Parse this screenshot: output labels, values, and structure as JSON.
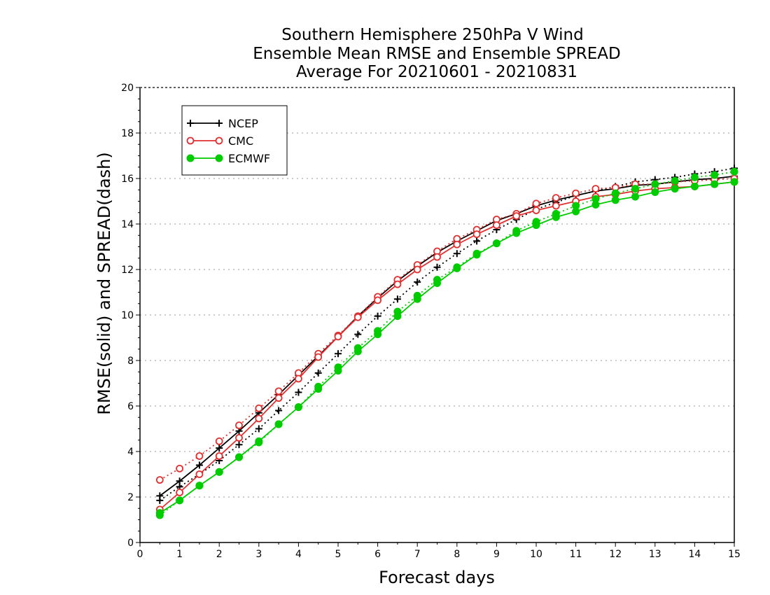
{
  "chart_data": {
    "type": "line",
    "title_lines": [
      "Southern Hemisphere 250hPa V Wind",
      "Ensemble Mean RMSE and Ensemble SPREAD",
      "Average For 20210601 - 20210831"
    ],
    "xlabel": "Forecast days",
    "ylabel": "RMSE(solid) and SPREAD(dash)",
    "xlim": [
      0,
      15
    ],
    "ylim": [
      0,
      20
    ],
    "x_ticks": [
      "0",
      "1",
      "2",
      "3",
      "4",
      "5",
      "6",
      "7",
      "8",
      "9",
      "10",
      "11",
      "12",
      "13",
      "14",
      "15"
    ],
    "y_ticks": [
      "0",
      "2",
      "4",
      "6",
      "8",
      "10",
      "12",
      "14",
      "16",
      "18",
      "20"
    ],
    "grid": "dotted horizontal",
    "legend_position": "top-left",
    "x": [
      0.5,
      1,
      1.5,
      2,
      2.5,
      3,
      3.5,
      4,
      4.5,
      5,
      5.5,
      6,
      6.5,
      7,
      7.5,
      8,
      8.5,
      9,
      9.5,
      10,
      10.5,
      11,
      11.5,
      12,
      12.5,
      13,
      13.5,
      14,
      14.5,
      15
    ],
    "series": [
      {
        "name": "NCEP",
        "color": "#000000",
        "marker": "plus",
        "rmse": [
          2.05,
          2.7,
          3.4,
          4.15,
          4.9,
          5.7,
          6.5,
          7.35,
          8.2,
          9.05,
          9.95,
          10.75,
          11.5,
          12.15,
          12.75,
          13.25,
          13.7,
          14.15,
          14.45,
          14.8,
          15.05,
          15.25,
          15.45,
          15.55,
          15.7,
          15.75,
          15.85,
          15.95,
          16.0,
          16.1
        ],
        "spread": [
          1.85,
          2.45,
          3.0,
          3.6,
          4.3,
          5.0,
          5.8,
          6.6,
          7.45,
          8.3,
          9.15,
          9.95,
          10.7,
          11.45,
          12.1,
          12.7,
          13.25,
          13.75,
          14.2,
          14.65,
          14.95,
          15.25,
          15.45,
          15.65,
          15.85,
          15.95,
          16.05,
          16.2,
          16.3,
          16.45
        ]
      },
      {
        "name": "CMC",
        "color": "#e03030",
        "marker": "circle",
        "rmse": [
          1.45,
          2.2,
          3.0,
          3.8,
          4.6,
          5.45,
          6.35,
          7.2,
          8.15,
          9.05,
          9.9,
          10.65,
          11.35,
          12.0,
          12.55,
          13.1,
          13.55,
          13.95,
          14.35,
          14.6,
          14.8,
          15.0,
          15.2,
          15.3,
          15.45,
          15.55,
          15.6,
          15.65,
          15.75,
          15.85
        ],
        "spread": [
          2.75,
          3.25,
          3.8,
          4.45,
          5.15,
          5.9,
          6.65,
          7.45,
          8.3,
          9.1,
          9.95,
          10.8,
          11.55,
          12.2,
          12.8,
          13.35,
          13.75,
          14.2,
          14.45,
          14.9,
          15.15,
          15.35,
          15.55,
          15.6,
          15.75,
          15.75,
          15.85,
          15.9,
          15.95,
          16.0
        ]
      },
      {
        "name": "ECMWF",
        "color": "#00cc00",
        "marker": "dot",
        "rmse": [
          1.3,
          1.85,
          2.5,
          3.1,
          3.75,
          4.45,
          5.2,
          5.95,
          6.75,
          7.55,
          8.4,
          9.15,
          9.95,
          10.7,
          11.4,
          12.05,
          12.65,
          13.15,
          13.6,
          13.95,
          14.3,
          14.55,
          14.85,
          15.05,
          15.2,
          15.4,
          15.55,
          15.65,
          15.75,
          15.85
        ],
        "spread": [
          1.2,
          1.85,
          2.5,
          3.1,
          3.75,
          4.4,
          5.2,
          5.95,
          6.85,
          7.7,
          8.55,
          9.3,
          10.15,
          10.85,
          11.55,
          12.1,
          12.7,
          13.15,
          13.7,
          14.1,
          14.45,
          14.8,
          15.1,
          15.35,
          15.55,
          15.75,
          15.9,
          16.05,
          16.15,
          16.3
        ]
      }
    ]
  }
}
